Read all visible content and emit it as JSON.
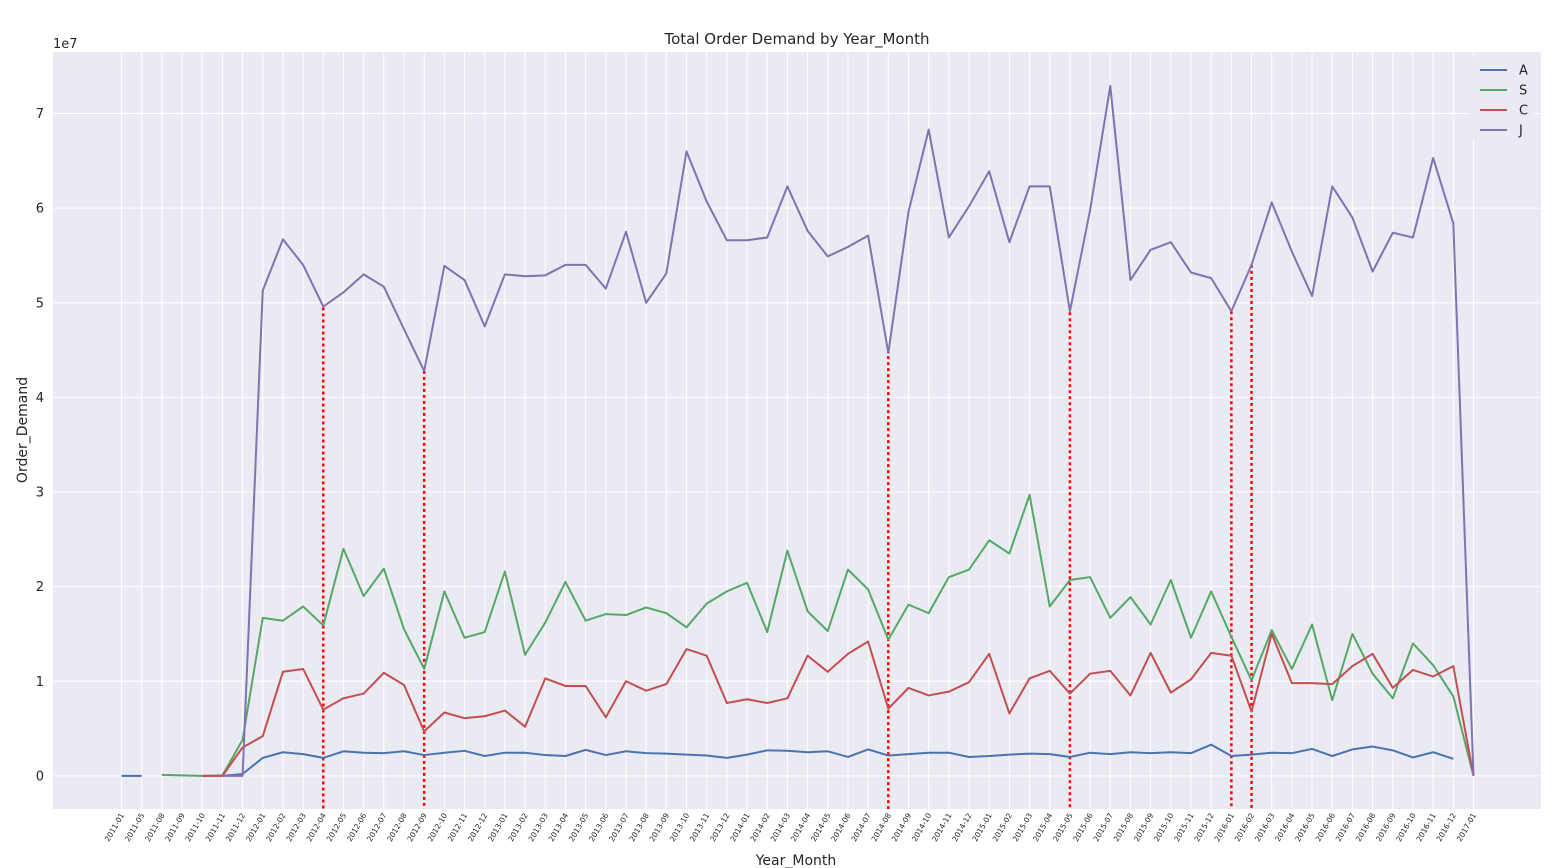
{
  "chart_data": {
    "type": "line",
    "title": "Total Order Demand by Year_Month",
    "xlabel": "Year_Month",
    "ylabel": "Order_Demand",
    "y_offset_text": "1e7",
    "y_scale": 10000000,
    "ylim": [
      -3500000,
      76500000
    ],
    "y_ticks": [
      0,
      10000000,
      20000000,
      30000000,
      40000000,
      50000000,
      60000000,
      70000000
    ],
    "y_tick_labels": [
      "0",
      "1",
      "2",
      "3",
      "4",
      "5",
      "6",
      "7"
    ],
    "grid": true,
    "legend_position": "top-right",
    "x": [
      "2011-01",
      "2011-05",
      "2011-08",
      "2011-09",
      "2011-10",
      "2011-11",
      "2011-12",
      "2012-01",
      "2012-02",
      "2012-03",
      "2012-04",
      "2012-05",
      "2012-06",
      "2012-07",
      "2012-08",
      "2012-09",
      "2012-10",
      "2012-11",
      "2012-12",
      "2013-01",
      "2013-02",
      "2013-03",
      "2013-04",
      "2013-05",
      "2013-06",
      "2013-07",
      "2013-08",
      "2013-09",
      "2013-10",
      "2013-11",
      "2013-12",
      "2014-01",
      "2014-02",
      "2014-03",
      "2014-04",
      "2014-05",
      "2014-06",
      "2014-07",
      "2014-08",
      "2014-09",
      "2014-10",
      "2014-11",
      "2014-12",
      "2015-01",
      "2015-02",
      "2015-03",
      "2015-04",
      "2015-05",
      "2015-06",
      "2015-07",
      "2015-08",
      "2015-09",
      "2015-10",
      "2015-11",
      "2015-12",
      "2016-01",
      "2016-02",
      "2016-03",
      "2016-04",
      "2016-05",
      "2016-06",
      "2016-07",
      "2016-08",
      "2016-09",
      "2016-10",
      "2016-11",
      "2016-12",
      "2017-01"
    ],
    "series": [
      {
        "name": "A",
        "color": "#4c72b0",
        "values": [
          0,
          0,
          null,
          null,
          null,
          0,
          200000,
          1900000,
          2500000,
          2300000,
          1900000,
          2600000,
          2450000,
          2400000,
          2600000,
          2200000,
          2450000,
          2650000,
          2100000,
          2450000,
          2450000,
          2200000,
          2100000,
          2750000,
          2200000,
          2600000,
          2400000,
          2350000,
          2250000,
          2150000,
          1900000,
          2250000,
          2700000,
          2650000,
          2500000,
          2600000,
          2000000,
          2800000,
          2150000,
          2300000,
          2450000,
          2450000,
          2000000,
          2100000,
          2250000,
          2350000,
          2300000,
          2000000,
          2450000,
          2300000,
          2500000,
          2400000,
          2500000,
          2400000,
          3300000,
          2100000,
          2250000,
          2450000,
          2400000,
          2850000,
          2100000,
          2800000,
          3100000,
          2700000,
          1950000,
          2500000,
          1800000,
          null
        ]
      },
      {
        "name": "S",
        "color": "#55a868",
        "values": [
          null,
          null,
          100000,
          50000,
          0,
          50000,
          3800000,
          16700000,
          16400000,
          17900000,
          15900000,
          24000000,
          19000000,
          21900000,
          15500000,
          11300000,
          19500000,
          14600000,
          15200000,
          21600000,
          12800000,
          16200000,
          20500000,
          16400000,
          17100000,
          17000000,
          17800000,
          17200000,
          15700000,
          18200000,
          19500000,
          20400000,
          15200000,
          23800000,
          17400000,
          15300000,
          21800000,
          19700000,
          14400000,
          18100000,
          17200000,
          21000000,
          21800000,
          24900000,
          23500000,
          29700000,
          17900000,
          20700000,
          21000000,
          16700000,
          18900000,
          16000000,
          20700000,
          14600000,
          19500000,
          14700000,
          10100000,
          15400000,
          11300000,
          16000000,
          8000000,
          15000000,
          10800000,
          8200000,
          14000000,
          11700000,
          8400000,
          0
        ]
      },
      {
        "name": "C",
        "color": "#c44e52",
        "values": [
          null,
          null,
          null,
          null,
          0,
          0,
          3000000,
          4200000,
          11000000,
          11300000,
          7000000,
          8200000,
          8700000,
          10900000,
          9600000,
          4700000,
          6700000,
          6100000,
          6300000,
          6900000,
          5200000,
          10300000,
          9500000,
          9500000,
          6200000,
          10000000,
          9000000,
          9700000,
          13400000,
          12700000,
          7700000,
          8100000,
          7700000,
          8200000,
          12700000,
          11000000,
          12900000,
          14200000,
          7100000,
          9300000,
          8500000,
          8900000,
          9900000,
          12900000,
          6600000,
          10300000,
          11100000,
          8700000,
          10800000,
          11100000,
          8500000,
          13000000,
          8800000,
          10200000,
          13000000,
          12700000,
          6800000,
          15000000,
          9800000,
          9800000,
          9700000,
          11600000,
          12900000,
          9300000,
          11200000,
          10500000,
          11600000,
          0
        ]
      },
      {
        "name": "J",
        "color": "#8172b2",
        "values": [
          null,
          null,
          null,
          null,
          null,
          0,
          0,
          51300000,
          56700000,
          54000000,
          49600000,
          51100000,
          53000000,
          51700000,
          47200000,
          42800000,
          53900000,
          52400000,
          47500000,
          53000000,
          52800000,
          52900000,
          54000000,
          54000000,
          51500000,
          57500000,
          50000000,
          53100000,
          66000000,
          60700000,
          56600000,
          56600000,
          56900000,
          62300000,
          57600000,
          54900000,
          55900000,
          57100000,
          44700000,
          59600000,
          68300000,
          56900000,
          60200000,
          63900000,
          56400000,
          62300000,
          62300000,
          49100000,
          59800000,
          72900000,
          52400000,
          55600000,
          56400000,
          53200000,
          52600000,
          49100000,
          54000000,
          60600000,
          55400000,
          50700000,
          62300000,
          59000000,
          53300000,
          57400000,
          56900000,
          65300000,
          58400000,
          0
        ]
      }
    ],
    "highlight_lines": [
      {
        "x": "2012-04",
        "value": 49500000,
        "color": "#ff0000"
      },
      {
        "x": "2012-09",
        "value": 42800000,
        "color": "#ff0000"
      },
      {
        "x": "2014-08",
        "value": 45000000,
        "color": "#ff0000"
      },
      {
        "x": "2015-05",
        "value": 49000000,
        "color": "#ff0000"
      },
      {
        "x": "2016-01",
        "value": 49100000,
        "color": "#ff0000"
      },
      {
        "x": "2016-02",
        "value": 54000000,
        "color": "#ff0000"
      }
    ]
  }
}
